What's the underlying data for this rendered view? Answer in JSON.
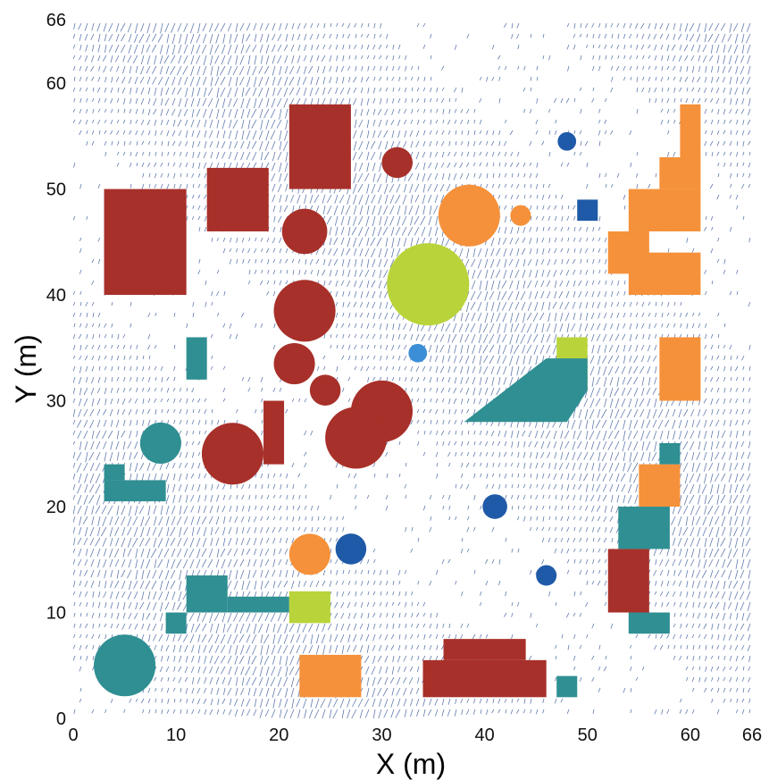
{
  "chart_data": {
    "type": "scatter",
    "xlabel": "X (m)",
    "ylabel": "Y (m)",
    "xlim": [
      0,
      66
    ],
    "ylim": [
      0,
      66
    ],
    "x_ticks": [
      0,
      10,
      20,
      30,
      40,
      50,
      60,
      66
    ],
    "y_ticks": [
      0,
      10,
      20,
      30,
      40,
      50,
      60,
      66
    ],
    "grid": false,
    "background": "quiver (wind vector) field",
    "colors": {
      "vectors": "#3b5a9a",
      "red": "#a8302a",
      "orange": "#f5913a",
      "teal": "#2f8f92",
      "lime": "#b9d43a",
      "blue": "#1f5aa8",
      "lightblue": "#3c8fd6"
    },
    "circles": [
      {
        "x": 31.5,
        "y": 52.5,
        "r": 1.5,
        "color": "red"
      },
      {
        "x": 22.5,
        "y": 46,
        "r": 2.2,
        "color": "red"
      },
      {
        "x": 22.5,
        "y": 38.5,
        "r": 3.0,
        "color": "red"
      },
      {
        "x": 21.5,
        "y": 33.5,
        "r": 2.0,
        "color": "red"
      },
      {
        "x": 24.5,
        "y": 31,
        "r": 1.5,
        "color": "red"
      },
      {
        "x": 30,
        "y": 29,
        "r": 3.0,
        "color": "red"
      },
      {
        "x": 27.5,
        "y": 26.5,
        "r": 3.0,
        "color": "red"
      },
      {
        "x": 15.5,
        "y": 25,
        "r": 3.0,
        "color": "red"
      },
      {
        "x": 38.5,
        "y": 47.5,
        "r": 3.0,
        "color": "orange"
      },
      {
        "x": 43.5,
        "y": 47.5,
        "r": 1.0,
        "color": "orange"
      },
      {
        "x": 34.5,
        "y": 41,
        "r": 4.0,
        "color": "lime"
      },
      {
        "x": 48,
        "y": 54.5,
        "r": 0.9,
        "color": "blue"
      },
      {
        "x": 33.5,
        "y": 34.5,
        "r": 0.9,
        "color": "lightblue"
      },
      {
        "x": 8.5,
        "y": 26,
        "r": 2.0,
        "color": "teal"
      },
      {
        "x": 41,
        "y": 20,
        "r": 1.2,
        "color": "blue"
      },
      {
        "x": 27,
        "y": 16,
        "r": 1.5,
        "color": "blue"
      },
      {
        "x": 46,
        "y": 13.5,
        "r": 1.0,
        "color": "blue"
      },
      {
        "x": 23,
        "y": 15.5,
        "r": 2.0,
        "color": "orange"
      },
      {
        "x": 5,
        "y": 5,
        "r": 3.0,
        "color": "teal"
      }
    ],
    "rectangles": [
      {
        "x0": 3,
        "y0": 40,
        "x1": 11,
        "y1": 50,
        "color": "red"
      },
      {
        "x0": 13,
        "y0": 46,
        "x1": 19,
        "y1": 52,
        "color": "red"
      },
      {
        "x0": 21,
        "y0": 50,
        "x1": 27,
        "y1": 58,
        "color": "red"
      },
      {
        "x0": 18.5,
        "y0": 24,
        "x1": 20.5,
        "y1": 30,
        "color": "red"
      },
      {
        "x0": 11,
        "y0": 32,
        "x1": 13,
        "y1": 36,
        "color": "teal"
      },
      {
        "x0": 3,
        "y0": 20.5,
        "x1": 9,
        "y1": 22.5,
        "color": "teal"
      },
      {
        "x0": 3,
        "y0": 22.5,
        "x1": 5,
        "y1": 24,
        "color": "teal"
      },
      {
        "x0": 11,
        "y0": 10,
        "x1": 15,
        "y1": 13.5,
        "color": "teal"
      },
      {
        "x0": 15,
        "y0": 10,
        "x1": 21,
        "y1": 11.5,
        "color": "teal"
      },
      {
        "x0": 9,
        "y0": 8,
        "x1": 11,
        "y1": 10,
        "color": "teal"
      },
      {
        "x0": 21,
        "y0": 9,
        "x1": 25,
        "y1": 12,
        "color": "lime"
      },
      {
        "x0": 47,
        "y0": 31,
        "x1": 50,
        "y1": 36,
        "color": "lime"
      },
      {
        "x0": 22,
        "y0": 2,
        "x1": 28,
        "y1": 6,
        "color": "orange"
      },
      {
        "x0": 34,
        "y0": 2,
        "x1": 46,
        "y1": 5.5,
        "color": "red"
      },
      {
        "x0": 36,
        "y0": 5.5,
        "x1": 44,
        "y1": 7.5,
        "color": "red"
      },
      {
        "x0": 47,
        "y0": 2,
        "x1": 49,
        "y1": 4,
        "color": "teal"
      },
      {
        "x0": 52,
        "y0": 10,
        "x1": 56,
        "y1": 16,
        "color": "red"
      },
      {
        "x0": 53,
        "y0": 16,
        "x1": 58,
        "y1": 20,
        "color": "teal"
      },
      {
        "x0": 55,
        "y0": 20,
        "x1": 59,
        "y1": 24,
        "color": "orange"
      },
      {
        "x0": 57,
        "y0": 24,
        "x1": 59,
        "y1": 26,
        "color": "teal"
      },
      {
        "x0": 54,
        "y0": 8,
        "x1": 58,
        "y1": 10,
        "color": "teal"
      },
      {
        "x0": 57,
        "y0": 30,
        "x1": 61,
        "y1": 36,
        "color": "orange"
      },
      {
        "x0": 54,
        "y0": 40,
        "x1": 61,
        "y1": 44,
        "color": "orange"
      },
      {
        "x0": 52,
        "y0": 42,
        "x1": 56,
        "y1": 46,
        "color": "orange"
      },
      {
        "x0": 54,
        "y0": 46,
        "x1": 61,
        "y1": 50,
        "color": "orange"
      },
      {
        "x0": 57,
        "y0": 50,
        "x1": 61,
        "y1": 53,
        "color": "orange"
      },
      {
        "x0": 59,
        "y0": 53,
        "x1": 61,
        "y1": 58,
        "color": "orange"
      },
      {
        "x0": 49,
        "y0": 47,
        "x1": 51,
        "y1": 49,
        "color": "blue"
      }
    ],
    "polygons": [
      {
        "points": [
          [
            38,
            28
          ],
          [
            48,
            28
          ],
          [
            50,
            31
          ],
          [
            50,
            34
          ],
          [
            46,
            34
          ]
        ],
        "color": "teal"
      }
    ]
  }
}
